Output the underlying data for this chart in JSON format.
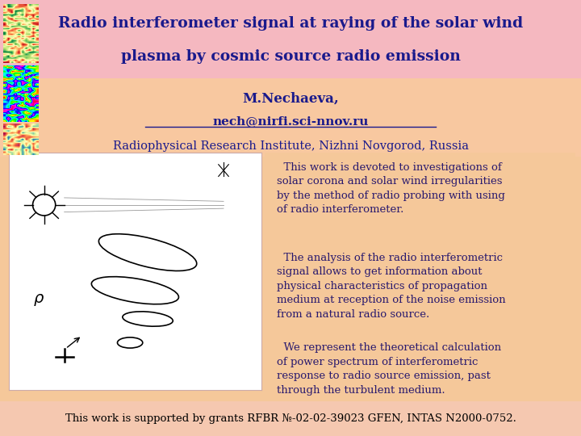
{
  "title_line1": "Radio interferometer signal at raying of the solar wind",
  "title_line2": "plasma by cosmic source radio emission",
  "author": "M.Nechaeva,",
  "email": "nech@nirfi.sci-nnov.ru",
  "institute": "Radiophysical Research Institute, Nizhni Novgorod, Russia",
  "paragraph1": "  This work is devoted to investigations of\nsolar corona and solar wind irregularities\nby the method of radio probing with using\nof radio interferometer.",
  "paragraph2": "  The analysis of the radio interferometric\nsignal allows to get information about\nphysical characteristics of propagation\nmedium at reception of the noise emission\nfrom a natural radio source.",
  "paragraph3": "  We represent the theoretical calculation\nof power spectrum of interferometric\nresponse to radio source emission, past\nthrough the turbulent medium.",
  "footer": "This work is supported by grants RFBR №-02-02-39023 GFEN, INTAS N2000-0752.",
  "text_color_title": "#1a1a8c",
  "text_color_body": "#2a1a6e",
  "text_color_footer": "#000000"
}
